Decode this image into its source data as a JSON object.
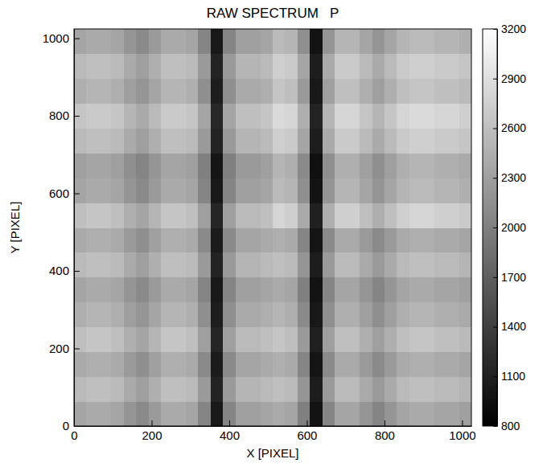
{
  "chart_data": {
    "type": "heatmap",
    "title": "RAW SPECTRUM   P",
    "x_label": "X [PIXEL]",
    "y_label": "Y [PIXEL]",
    "xlim": [
      0,
      1024
    ],
    "ylim": [
      0,
      1024
    ],
    "xticks": [
      0,
      200,
      400,
      600,
      800,
      1000
    ],
    "yticks": [
      0,
      200,
      400,
      600,
      800,
      1000
    ],
    "color_range": [
      800,
      3200
    ],
    "color_ticks": [
      800,
      1100,
      1400,
      1700,
      2000,
      2300,
      2600,
      2900,
      3200
    ],
    "cells": [
      [
        2350,
        2400,
        2400,
        2350,
        2200,
        2100,
        2250,
        2400,
        2400,
        2350,
        2050,
        1025,
        2050,
        2300,
        2300,
        2350,
        2400,
        2350,
        2000,
        975,
        2050,
        2350,
        2350,
        2200,
        2050,
        2200,
        2350,
        2400,
        2400,
        2350,
        2350,
        2300
      ],
      [
        2550,
        2600,
        2600,
        2550,
        2400,
        2300,
        2450,
        2600,
        2600,
        2550,
        2250,
        1125,
        2250,
        2500,
        2500,
        2550,
        2600,
        2550,
        2200,
        1075,
        2250,
        2550,
        2550,
        2400,
        2250,
        2400,
        2550,
        2600,
        2600,
        2550,
        2550,
        2500
      ],
      [
        2400,
        2450,
        2450,
        2400,
        2250,
        2150,
        2300,
        2450,
        2450,
        2400,
        2100,
        1050,
        2100,
        2350,
        2350,
        2400,
        2450,
        2400,
        2050,
        1000,
        2100,
        2400,
        2400,
        2250,
        2100,
        2250,
        2400,
        2450,
        2450,
        2400,
        2400,
        2350
      ],
      [
        2600,
        2650,
        2650,
        2600,
        2450,
        2350,
        2500,
        2650,
        2650,
        2600,
        2300,
        1150,
        2300,
        2550,
        2550,
        2600,
        2650,
        2600,
        2250,
        1100,
        2300,
        2600,
        2600,
        2450,
        2300,
        2450,
        2600,
        2650,
        2650,
        2600,
        2600,
        2550
      ],
      [
        2450,
        2500,
        2500,
        2450,
        2300,
        2200,
        2350,
        2500,
        2500,
        2450,
        2150,
        1075,
        2150,
        2400,
        2400,
        2450,
        2500,
        2450,
        2100,
        1025,
        2150,
        2450,
        2450,
        2300,
        2150,
        2300,
        2450,
        2500,
        2500,
        2450,
        2450,
        2400
      ],
      [
        2350,
        2400,
        2400,
        2350,
        2200,
        2100,
        2250,
        2400,
        2400,
        2350,
        2050,
        1025,
        2050,
        2300,
        2300,
        2350,
        2400,
        2350,
        2000,
        975,
        2050,
        2350,
        2350,
        2200,
        2050,
        2200,
        2350,
        2400,
        2400,
        2350,
        2350,
        2300
      ],
      [
        2550,
        2600,
        2600,
        2550,
        2400,
        2300,
        2450,
        2600,
        2600,
        2550,
        2250,
        1125,
        2250,
        2500,
        2500,
        2550,
        2600,
        2550,
        2200,
        1075,
        2250,
        2550,
        2550,
        2400,
        2250,
        2400,
        2550,
        2600,
        2600,
        2550,
        2550,
        2500
      ],
      [
        2400,
        2450,
        2450,
        2400,
        2250,
        2150,
        2300,
        2450,
        2450,
        2400,
        2100,
        1050,
        2100,
        2350,
        2350,
        2400,
        2450,
        2400,
        2050,
        1000,
        2100,
        2400,
        2400,
        2250,
        2100,
        2250,
        2400,
        2450,
        2450,
        2400,
        2400,
        2350
      ],
      [
        2600,
        2650,
        2650,
        2600,
        2450,
        2350,
        2500,
        2650,
        2650,
        2600,
        2300,
        1150,
        2300,
        2550,
        2550,
        2600,
        2800,
        2750,
        2400,
        1100,
        2450,
        2750,
        2750,
        2600,
        2450,
        2600,
        2750,
        2800,
        2800,
        2750,
        2750,
        2700
      ],
      [
        2350,
        2400,
        2400,
        2350,
        2200,
        2100,
        2250,
        2400,
        2400,
        2350,
        2050,
        1025,
        2050,
        2300,
        2300,
        2350,
        2550,
        2500,
        2150,
        975,
        2200,
        2500,
        2500,
        2350,
        2200,
        2350,
        2500,
        2550,
        2550,
        2500,
        2500,
        2450
      ],
      [
        2300,
        2350,
        2350,
        2300,
        2150,
        2050,
        2200,
        2350,
        2350,
        2300,
        2000,
        1000,
        2000,
        2250,
        2250,
        2300,
        2500,
        2450,
        2100,
        950,
        2150,
        2450,
        2450,
        2300,
        2150,
        2300,
        2450,
        2500,
        2500,
        2450,
        2450,
        2400
      ],
      [
        2550,
        2600,
        2600,
        2550,
        2400,
        2300,
        2450,
        2600,
        2600,
        2550,
        2250,
        1125,
        2250,
        2500,
        2500,
        2550,
        2750,
        2700,
        2350,
        1075,
        2400,
        2700,
        2700,
        2550,
        2400,
        2550,
        2700,
        2750,
        2750,
        2700,
        2700,
        2650
      ],
      [
        2650,
        2700,
        2700,
        2650,
        2500,
        2400,
        2550,
        2700,
        2700,
        2650,
        2350,
        1175,
        2350,
        2600,
        2600,
        2650,
        2850,
        2800,
        2450,
        1125,
        2500,
        2800,
        2800,
        2650,
        2500,
        2650,
        2800,
        2850,
        2850,
        2800,
        2800,
        2750
      ],
      [
        2450,
        2500,
        2500,
        2450,
        2300,
        2200,
        2350,
        2500,
        2500,
        2450,
        2150,
        1075,
        2150,
        2400,
        2400,
        2450,
        2650,
        2600,
        2250,
        1025,
        2300,
        2600,
        2600,
        2450,
        2300,
        2450,
        2600,
        2650,
        2650,
        2600,
        2600,
        2550
      ],
      [
        2550,
        2600,
        2600,
        2550,
        2400,
        2300,
        2450,
        2600,
        2600,
        2550,
        2250,
        1125,
        2250,
        2500,
        2500,
        2550,
        2750,
        2700,
        2350,
        1075,
        2400,
        2700,
        2700,
        2550,
        2400,
        2550,
        2700,
        2750,
        2750,
        2700,
        2700,
        2650
      ],
      [
        2350,
        2400,
        2400,
        2350,
        2200,
        2100,
        2250,
        2400,
        2400,
        2350,
        2050,
        1025,
        2050,
        2300,
        2300,
        2350,
        2550,
        2500,
        2150,
        975,
        2200,
        2500,
        2500,
        2350,
        2200,
        2350,
        2500,
        2550,
        2550,
        2500,
        2500,
        2450
      ]
    ]
  }
}
